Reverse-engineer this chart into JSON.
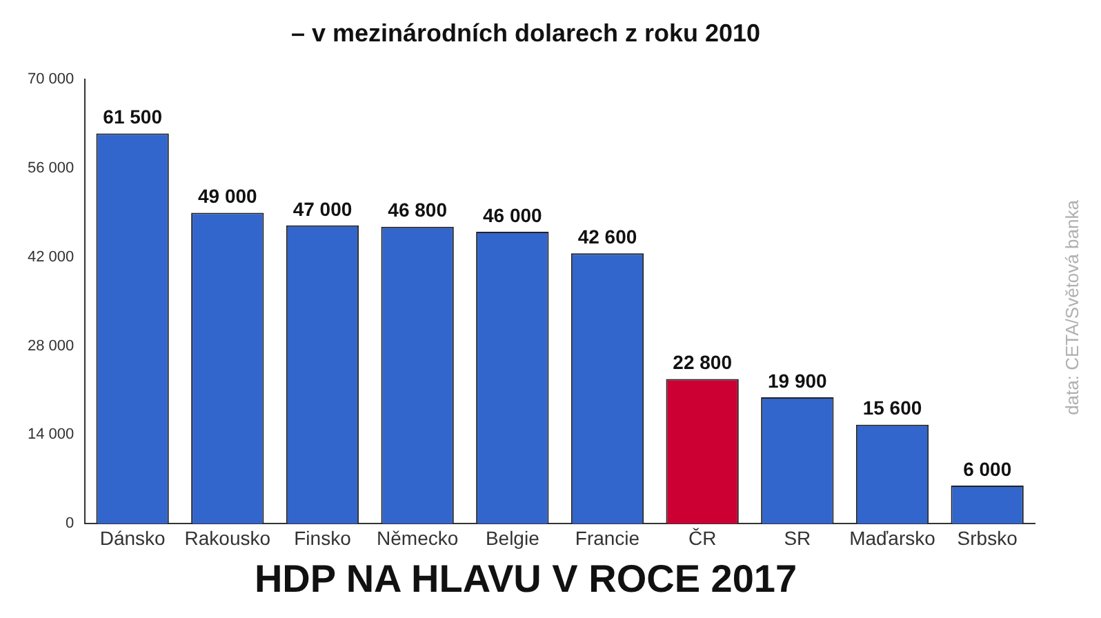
{
  "chart_data": {
    "type": "bar",
    "title": "HDP NA HLAVU V ROCE 2017",
    "subtitle": "– v mezinárodních dolarech z roku 2010",
    "annotations": [
      "data: CETA/Světová banka"
    ],
    "categories": [
      "Dánsko",
      "Rakousko",
      "Finsko",
      "Německo",
      "Belgie",
      "Francie",
      "ČR",
      "SR",
      "Maďarsko",
      "Srbsko"
    ],
    "values": [
      61500,
      49000,
      47000,
      46800,
      46000,
      42600,
      22800,
      19900,
      15600,
      6000
    ],
    "value_labels": [
      "61 500",
      "49 000",
      "47 000",
      "46 800",
      "46 000",
      "42 600",
      "22 800",
      "19 900",
      "15 600",
      "6 000"
    ],
    "colors": [
      "#3366cc",
      "#3366cc",
      "#3366cc",
      "#3366cc",
      "#3366cc",
      "#3366cc",
      "#cc0033",
      "#3366cc",
      "#3366cc",
      "#3366cc"
    ],
    "ylim": [
      0,
      70000
    ],
    "yticks": [
      {
        "value": 0,
        "label": "0"
      },
      {
        "value": 14000,
        "label": "14 000"
      },
      {
        "value": 28000,
        "label": "28 000"
      },
      {
        "value": 42000,
        "label": "42 000"
      },
      {
        "value": 56000,
        "label": "56 000"
      },
      {
        "value": 70000,
        "label": "70 000"
      }
    ],
    "grid": false,
    "legend": false
  }
}
